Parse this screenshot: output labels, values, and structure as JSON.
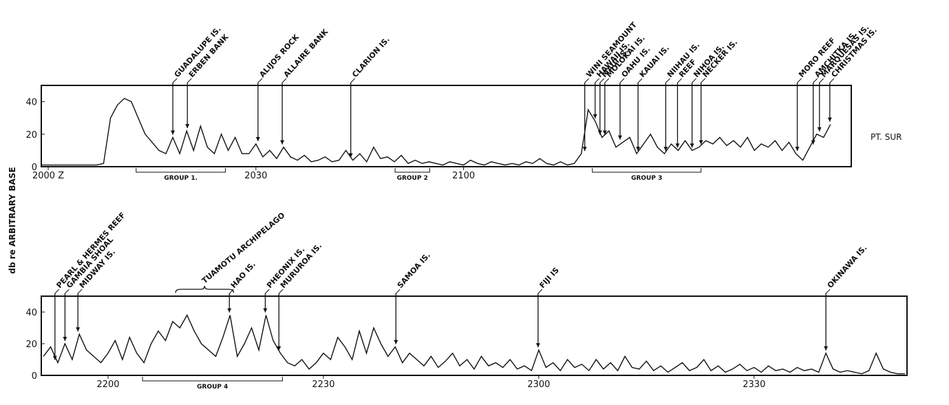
{
  "chart_data": [
    {
      "type": "line",
      "ylabel": "db re ARBITRARY BASE",
      "location_label": "PT. SUR",
      "color": "#111111",
      "xlim": [
        -1,
        116
      ],
      "ylim": [
        0,
        50
      ],
      "xticks": [
        {
          "value": 0,
          "label": "2000 Z"
        },
        {
          "value": 30,
          "label": "2030"
        },
        {
          "value": 60,
          "label": "2100"
        }
      ],
      "yticks": [
        0,
        20,
        40
      ],
      "x": [
        -1,
        0,
        1,
        2,
        3,
        4,
        5,
        6,
        7,
        8,
        9,
        10,
        11,
        12,
        13,
        14,
        15,
        16,
        17,
        18,
        19,
        20,
        21,
        22,
        23,
        24,
        25,
        26,
        27,
        28,
        29,
        30,
        31,
        32,
        33,
        34,
        35,
        36,
        37,
        38,
        39,
        40,
        41,
        42,
        43,
        44,
        45,
        46,
        47,
        48,
        49,
        50,
        51,
        52,
        53,
        54,
        55,
        56,
        57,
        58,
        59,
        60,
        61,
        62,
        63,
        64,
        65,
        66,
        67,
        68,
        69,
        70,
        71,
        72,
        73,
        74,
        75,
        76,
        77,
        78,
        79,
        80,
        81,
        82,
        83,
        84,
        85,
        86,
        87,
        88,
        89,
        90,
        91,
        92,
        93,
        94,
        95,
        96,
        97,
        98,
        99,
        100,
        101,
        102,
        103,
        104,
        105,
        106,
        107,
        108,
        109,
        110,
        111,
        112,
        113
      ],
      "values": [
        1,
        1,
        1,
        1,
        1,
        1,
        1,
        1,
        1,
        2,
        30,
        38,
        42,
        40,
        30,
        20,
        15,
        10,
        8,
        18,
        8,
        22,
        10,
        25,
        12,
        8,
        20,
        10,
        18,
        8,
        8,
        14,
        6,
        10,
        5,
        12,
        6,
        4,
        7,
        3,
        4,
        6,
        3,
        4,
        10,
        4,
        8,
        3,
        12,
        5,
        6,
        3,
        7,
        2,
        4,
        2,
        3,
        2,
        1,
        3,
        2,
        1,
        4,
        2,
        1,
        3,
        2,
        1,
        2,
        1,
        3,
        2,
        5,
        2,
        1,
        3,
        1,
        2,
        8,
        35,
        28,
        18,
        22,
        12,
        15,
        18,
        8,
        14,
        20,
        12,
        8,
        14,
        10,
        16,
        10,
        12,
        16,
        14,
        18,
        13,
        16,
        12,
        18,
        10,
        14,
        12,
        16,
        10,
        15,
        8,
        4,
        12,
        20,
        18,
        26
      ],
      "annotations": [
        {
          "text": "GUADALUPE IS.",
          "x": 18.0
        },
        {
          "text": "ERBEN BANK",
          "x": 20.1
        },
        {
          "text": "ALIJOS ROCK",
          "x": 30.3
        },
        {
          "text": "ALLAIRE BANK",
          "x": 33.8
        },
        {
          "text": "CLARION IS.",
          "x": 43.7
        },
        {
          "text": "WINI SEAMOUNT",
          "x": 77.5
        },
        {
          "text": "HAWAII IS.",
          "x": 79.0
        },
        {
          "text": "MAUI IS.",
          "x": 79.7
        },
        {
          "text": "MOLOKAI IS.",
          "x": 80.4
        },
        {
          "text": "OAHU IS.",
          "x": 82.6
        },
        {
          "text": "KAUAI IS.",
          "x": 85.2
        },
        {
          "text": "NIIHAU IS.",
          "x": 89.2
        },
        {
          "text": "REEF",
          "x": 90.9
        },
        {
          "text": "NIHOA IS.",
          "x": 93.0
        },
        {
          "text": "NECKER IS.",
          "x": 94.3
        },
        {
          "text": "MORO REEF",
          "x": 108.2
        },
        {
          "text": "AMCHITKA IS.",
          "x": 110.5
        },
        {
          "text": "MARQUESAS IS.",
          "x": 111.4
        },
        {
          "text": "CHRISTMAS IS.",
          "x": 112.9
        }
      ],
      "groups": [
        {
          "label": "GROUP 1.",
          "start": 12.7,
          "end": 25.6
        },
        {
          "label": "GROUP 2",
          "start": 50.1,
          "end": 55.1
        },
        {
          "label": "GROUP 3",
          "start": 78.6,
          "end": 94.3
        }
      ]
    },
    {
      "type": "line",
      "color": "#111111",
      "xlim": [
        -9.3,
        111.3
      ],
      "ylim": [
        0,
        50
      ],
      "xticks": [
        {
          "value": 0,
          "label": "2200"
        },
        {
          "value": 30,
          "label": "2230"
        },
        {
          "value": 60,
          "label": "2300"
        },
        {
          "value": 90,
          "label": "2330"
        }
      ],
      "yticks": [
        0,
        20,
        40
      ],
      "x": [
        -9,
        -8,
        -7,
        -6,
        -5,
        -4,
        -3,
        -2,
        -1,
        0,
        1,
        2,
        3,
        4,
        5,
        6,
        7,
        8,
        9,
        10,
        11,
        12,
        13,
        14,
        15,
        16,
        17,
        18,
        19,
        20,
        21,
        22,
        23,
        24,
        25,
        26,
        27,
        28,
        29,
        30,
        31,
        32,
        33,
        34,
        35,
        36,
        37,
        38,
        39,
        40,
        41,
        42,
        43,
        44,
        45,
        46,
        47,
        48,
        49,
        50,
        51,
        52,
        53,
        54,
        55,
        56,
        57,
        58,
        59,
        60,
        61,
        62,
        63,
        64,
        65,
        66,
        67,
        68,
        69,
        70,
        71,
        72,
        73,
        74,
        75,
        76,
        77,
        78,
        79,
        80,
        81,
        82,
        83,
        84,
        85,
        86,
        87,
        88,
        89,
        90,
        91,
        92,
        93,
        94,
        95,
        96,
        97,
        98,
        99,
        100,
        101,
        102,
        103,
        104,
        105,
        106,
        107,
        108,
        109,
        110,
        111
      ],
      "values": [
        12,
        18,
        8,
        20,
        10,
        26,
        16,
        12,
        8,
        14,
        22,
        10,
        24,
        14,
        8,
        20,
        28,
        22,
        34,
        30,
        38,
        28,
        20,
        16,
        12,
        24,
        38,
        12,
        20,
        30,
        16,
        38,
        22,
        14,
        8,
        6,
        10,
        4,
        8,
        14,
        10,
        24,
        18,
        10,
        28,
        14,
        30,
        20,
        12,
        18,
        8,
        14,
        10,
        6,
        12,
        5,
        9,
        14,
        6,
        10,
        4,
        12,
        6,
        8,
        5,
        10,
        4,
        6,
        3,
        16,
        5,
        8,
        3,
        10,
        5,
        7,
        3,
        10,
        4,
        8,
        3,
        12,
        5,
        4,
        9,
        3,
        6,
        2,
        5,
        8,
        3,
        5,
        10,
        3,
        6,
        2,
        4,
        7,
        3,
        5,
        2,
        6,
        3,
        4,
        2,
        5,
        3,
        4,
        2,
        14,
        4,
        2,
        3,
        2,
        1,
        3,
        14,
        4,
        2,
        1,
        1
      ],
      "annotations": [
        {
          "text": "PEARL & HERMES REEF",
          "x": -7.4
        },
        {
          "text": "GAMBIA SHOAL",
          "x": -6.0
        },
        {
          "text": "MIDWAY IS.",
          "x": -4.2
        },
        {
          "text": "HAO IS.",
          "x": 16.9
        },
        {
          "text": "PHEONIX IS.",
          "x": 21.9
        },
        {
          "text": "MURUROA IS.",
          "x": 23.8
        },
        {
          "text": "SAMOA IS.",
          "x": 40.1
        },
        {
          "text": "FIJI IS",
          "x": 59.9
        },
        {
          "text": "OKINAWA IS.",
          "x": 100.0
        }
      ],
      "spans": [
        {
          "text": "TUAMOTU ARCHIPELAGO",
          "start": 9.4,
          "end": 17.5
        }
      ],
      "groups": [
        {
          "label": "GROUP 4",
          "start": 4.8,
          "end": 24.3
        }
      ]
    }
  ]
}
